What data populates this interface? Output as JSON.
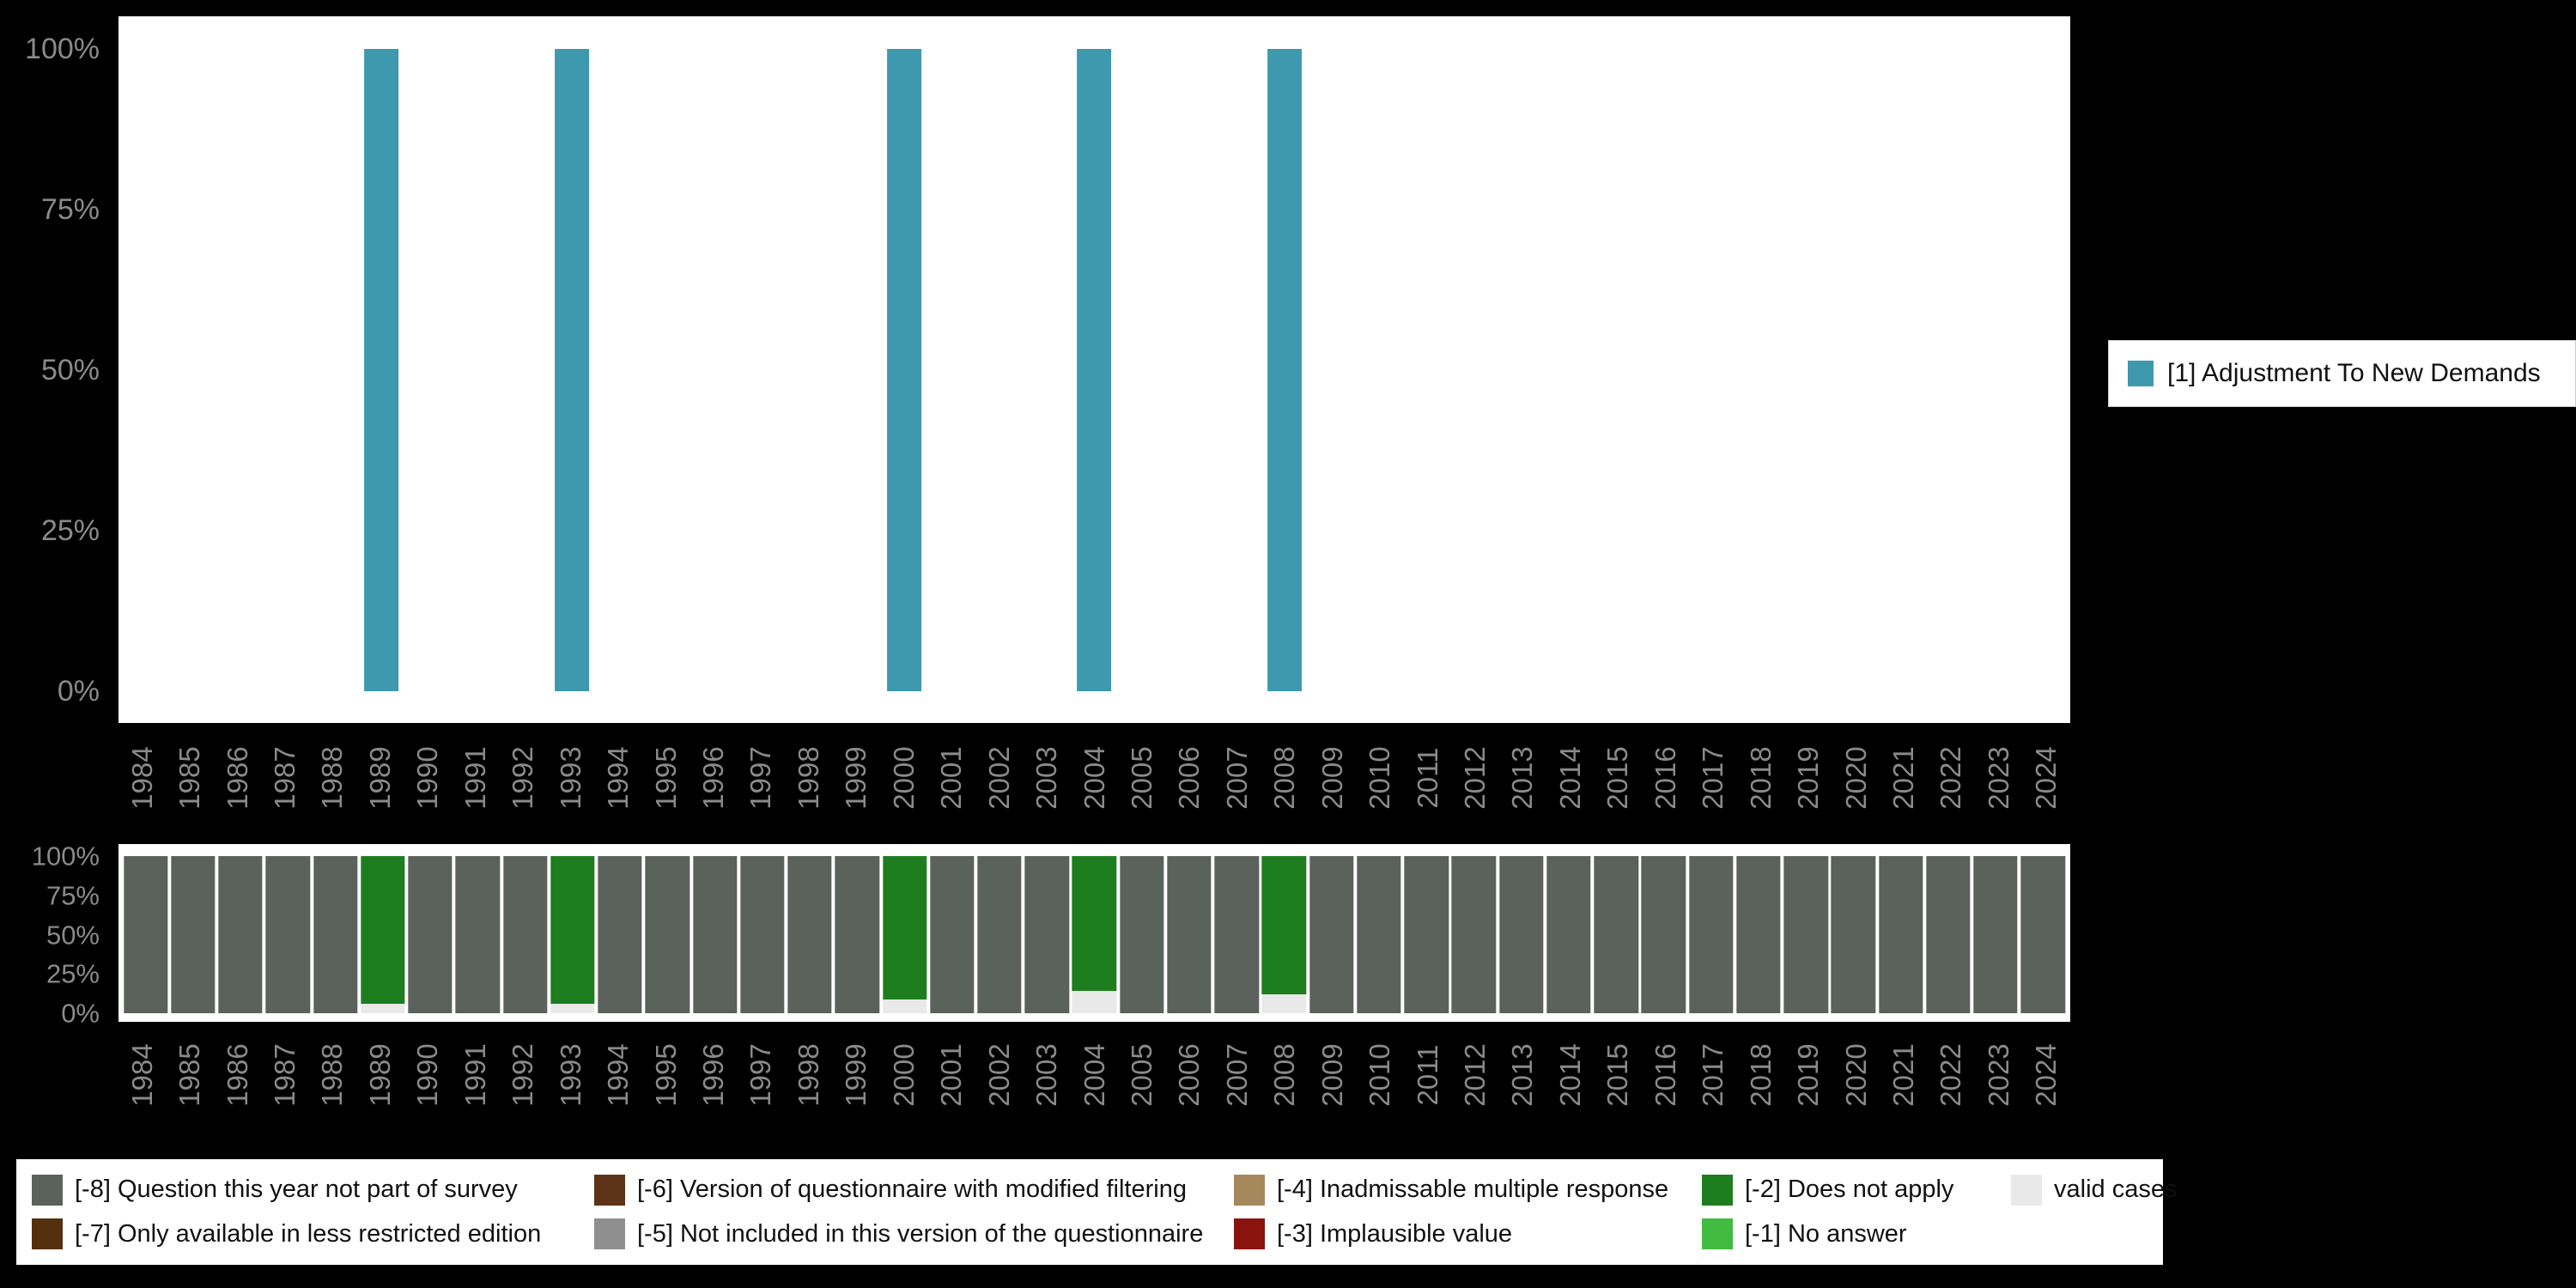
{
  "colors": {
    "page_background": "#000000",
    "plot_background": "#ffffff",
    "axis_text": "#8a8a8a",
    "legend_background": "#ffffff",
    "legend_text": "#111111"
  },
  "legend_top": {
    "label": "[1] Adjustment To New Demands",
    "color": "#3e99af"
  },
  "legend_bottom": {
    "items": [
      {
        "label": "[-8] Question this year not part of survey",
        "color": "#5b615b"
      },
      {
        "label": "[-6] Version of questionnaire with modified filtering",
        "color": "#5c3317"
      },
      {
        "label": "[-4] Inadmissable multiple response",
        "color": "#a6885d"
      },
      {
        "label": "[-2] Does not apply",
        "color": "#1e7d1e"
      },
      {
        "label": "valid cases",
        "color": "#e9e9e9"
      },
      {
        "label": "[-7] Only available in less restricted edition",
        "color": "#55300f"
      },
      {
        "label": "[-5] Not included in this version of the questionnaire",
        "color": "#8f8f8f"
      },
      {
        "label": "[-3] Implausible value",
        "color": "#8b130d"
      },
      {
        "label": "[-1] No answer",
        "color": "#41bb41"
      }
    ]
  },
  "chart_data": [
    {
      "type": "bar",
      "title": "",
      "xlabel": "",
      "ylabel": "",
      "ylim": [
        0,
        100
      ],
      "grid": false,
      "legend_position": "right",
      "categories": [
        "1984",
        "1985",
        "1986",
        "1987",
        "1988",
        "1989",
        "1990",
        "1991",
        "1992",
        "1993",
        "1994",
        "1995",
        "1996",
        "1997",
        "1998",
        "1999",
        "2000",
        "2001",
        "2002",
        "2003",
        "2004",
        "2005",
        "2006",
        "2007",
        "2008",
        "2009",
        "2010",
        "2011",
        "2012",
        "2013",
        "2014",
        "2015",
        "2016",
        "2017",
        "2018",
        "2019",
        "2020",
        "2021",
        "2022",
        "2023",
        "2024"
      ],
      "yticks": {
        "labels": [
          "100%",
          "75%",
          "50%",
          "25%",
          "0%"
        ],
        "values": [
          100,
          75,
          50,
          25,
          0
        ]
      },
      "series": [
        {
          "name": "[1] Adjustment To New Demands",
          "color": "#3e99af",
          "values": [
            0,
            0,
            0,
            0,
            0,
            100,
            0,
            0,
            0,
            100,
            0,
            0,
            0,
            0,
            0,
            0,
            100,
            0,
            0,
            0,
            100,
            0,
            0,
            0,
            100,
            0,
            0,
            0,
            0,
            0,
            0,
            0,
            0,
            0,
            0,
            0,
            0,
            0,
            0,
            0,
            0
          ]
        }
      ]
    },
    {
      "type": "bar",
      "subtype": "stacked",
      "title": "",
      "xlabel": "",
      "ylabel": "",
      "ylim": [
        0,
        100
      ],
      "grid": false,
      "stack_order": "bottom-to-top",
      "categories": [
        "1984",
        "1985",
        "1986",
        "1987",
        "1988",
        "1989",
        "1990",
        "1991",
        "1992",
        "1993",
        "1994",
        "1995",
        "1996",
        "1997",
        "1998",
        "1999",
        "2000",
        "2001",
        "2002",
        "2003",
        "2004",
        "2005",
        "2006",
        "2007",
        "2008",
        "2009",
        "2010",
        "2011",
        "2012",
        "2013",
        "2014",
        "2015",
        "2016",
        "2017",
        "2018",
        "2019",
        "2020",
        "2021",
        "2022",
        "2023",
        "2024"
      ],
      "yticks": {
        "labels": [
          "100%",
          "75%",
          "50%",
          "25%",
          "0%"
        ],
        "values": [
          100,
          75,
          50,
          25,
          0
        ]
      },
      "series": [
        {
          "name": "valid cases",
          "color": "#e9e9e9",
          "values": [
            0,
            0,
            0,
            0,
            0,
            6,
            0,
            0,
            0,
            6,
            0,
            0,
            0,
            0,
            0,
            0,
            9,
            0,
            0,
            0,
            14,
            0,
            0,
            0,
            12,
            0,
            0,
            0,
            0,
            0,
            0,
            0,
            0,
            0,
            0,
            0,
            0,
            0,
            0,
            0,
            0
          ]
        },
        {
          "name": "[-2] Does not apply",
          "color": "#1e7d1e",
          "values": [
            0,
            0,
            0,
            0,
            0,
            94,
            0,
            0,
            0,
            94,
            0,
            0,
            0,
            0,
            0,
            0,
            91,
            0,
            0,
            0,
            86,
            0,
            0,
            0,
            88,
            0,
            0,
            0,
            0,
            0,
            0,
            0,
            0,
            0,
            0,
            0,
            0,
            0,
            0,
            0,
            0
          ]
        },
        {
          "name": "[-8] Question this year not part of survey",
          "color": "#5b615b",
          "values": [
            100,
            100,
            100,
            100,
            100,
            0,
            100,
            100,
            100,
            0,
            100,
            100,
            100,
            100,
            100,
            100,
            0,
            100,
            100,
            100,
            0,
            100,
            100,
            100,
            0,
            100,
            100,
            100,
            100,
            100,
            100,
            100,
            100,
            100,
            100,
            100,
            100,
            100,
            100,
            100,
            100
          ]
        }
      ]
    }
  ]
}
